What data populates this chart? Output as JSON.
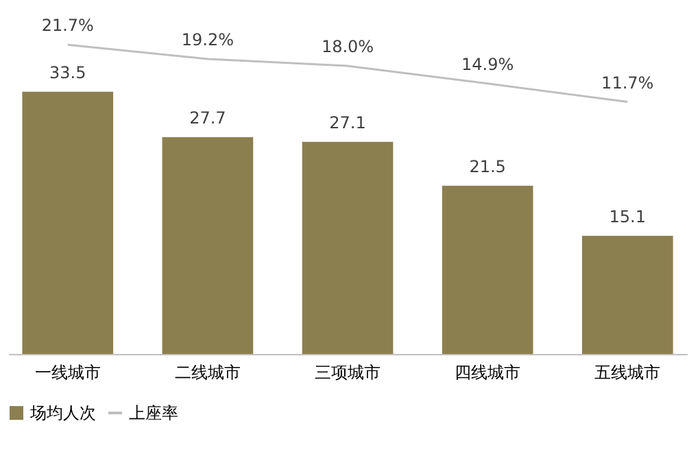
{
  "chart_data": {
    "type": "bar",
    "categories": [
      "一线城市",
      "二线城市",
      "三项城市",
      "四线城市",
      "五线城市"
    ],
    "series": [
      {
        "name": "场均人次",
        "color": "#8c7f4f",
        "values": [
          33.5,
          27.7,
          27.1,
          21.5,
          15.1
        ]
      },
      {
        "name": "上座率",
        "type": "line",
        "axis": "y2",
        "line_style": "solid",
        "color": "#bfbfbf",
        "values": [
          21.7,
          19.2,
          18.0,
          14.9,
          11.7
        ],
        "value_labels": [
          "21.7%",
          "19.2%",
          "18.0%",
          "14.9%",
          "11.7%"
        ]
      }
    ],
    "data_labels": true,
    "tick_labels": "x",
    "legend": "bottom",
    "marker": "none"
  }
}
